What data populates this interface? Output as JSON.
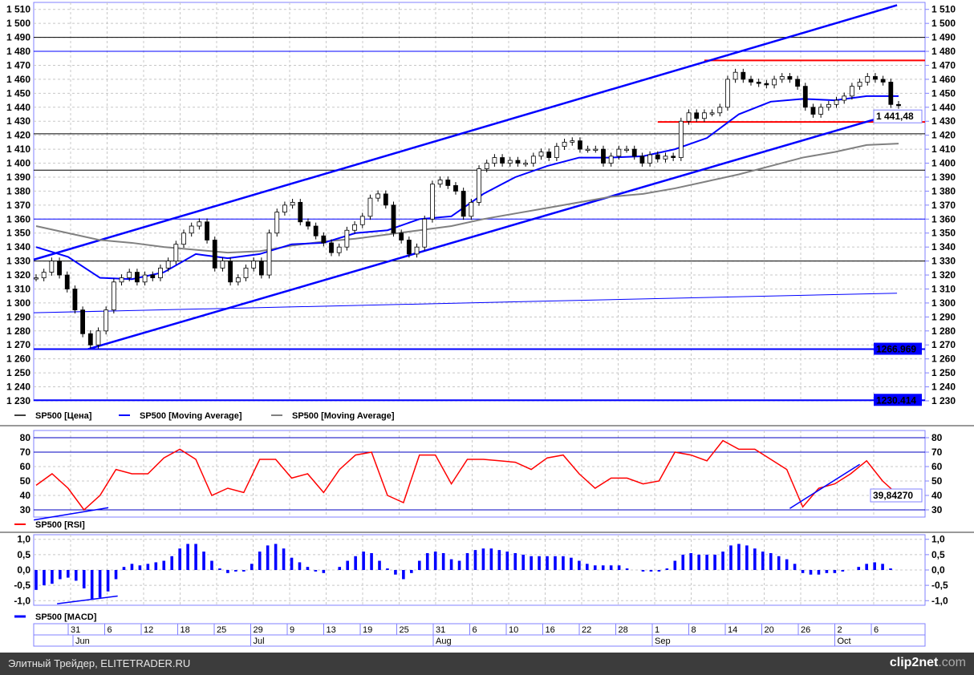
{
  "colors": {
    "price_ma": "#0000ff",
    "long_ma": "#808080",
    "rsi": "#ff0000",
    "macd": "#0000ff",
    "support": "#ff0000",
    "grid": "#c8c8c8",
    "frame": "#8080ff",
    "footer": "#3c3c3c"
  },
  "legend": {
    "price": [
      {
        "label": "SP500 [Цена]",
        "color": "#404040"
      },
      {
        "label": "SP500 [Moving Average]",
        "color": "#0000ff"
      },
      {
        "label": "SP500 [Moving Average]",
        "color": "#808080"
      }
    ],
    "rsi": {
      "label": "SP500 [RSI]",
      "color": "#ff0000"
    },
    "macd": {
      "label": "SP500 [MACD]",
      "color": "#0000ff"
    }
  },
  "footer": {
    "source": "Элитный Трейдер, ELITETRADER.RU",
    "logo_main": "clip2net",
    "logo_suffix": ".com"
  },
  "chart_data": [
    {
      "type": "candlestick",
      "panel": "price",
      "ylim": [
        1230,
        1515
      ],
      "y_ticks": [
        "1 230",
        "1 240",
        "1 250",
        "1 260",
        "1 270",
        "1 280",
        "1 290",
        "1 300",
        "1 310",
        "1 320",
        "1 330",
        "1 340",
        "1 350",
        "1 360",
        "1 370",
        "1 380",
        "1 390",
        "1 400",
        "1 410",
        "1 420",
        "1 430",
        "1 440",
        "1 450",
        "1 460",
        "1 470",
        "1 480",
        "1 490",
        "1 500",
        "1 510"
      ],
      "y_tick_values": [
        1230,
        1240,
        1250,
        1260,
        1270,
        1280,
        1290,
        1300,
        1310,
        1320,
        1330,
        1340,
        1350,
        1360,
        1370,
        1380,
        1390,
        1400,
        1410,
        1420,
        1430,
        1440,
        1450,
        1460,
        1470,
        1480,
        1490,
        1500,
        1510
      ],
      "last_price_label": "1 441,48",
      "close": [
        1318,
        1322,
        1330,
        1320,
        1310,
        1295,
        1278,
        1270,
        1280,
        1295,
        1315,
        1318,
        1322,
        1315,
        1320,
        1318,
        1325,
        1330,
        1342,
        1350,
        1355,
        1358,
        1345,
        1325,
        1330,
        1315,
        1318,
        1325,
        1330,
        1320,
        1350,
        1365,
        1370,
        1372,
        1358,
        1355,
        1348,
        1343,
        1336,
        1340,
        1352,
        1356,
        1362,
        1375,
        1378,
        1370,
        1350,
        1345,
        1335,
        1340,
        1360,
        1385,
        1388,
        1384,
        1380,
        1362,
        1372,
        1396,
        1400,
        1404,
        1400,
        1402,
        1400,
        1400,
        1405,
        1408,
        1404,
        1412,
        1415,
        1416,
        1410,
        1410,
        1410,
        1400,
        1405,
        1410,
        1410,
        1405,
        1400,
        1406,
        1403,
        1405,
        1404,
        1430,
        1436,
        1432,
        1436,
        1436,
        1440,
        1460,
        1465,
        1460,
        1458,
        1457,
        1456,
        1460,
        1462,
        1460,
        1455,
        1440,
        1435,
        1440,
        1442,
        1445,
        1448,
        1455,
        1458,
        1462,
        1460,
        1458,
        1442,
        1441.48
      ],
      "moving_average_short": [
        1340,
        1333,
        1318,
        1317,
        1322,
        1335,
        1332,
        1335,
        1342,
        1343,
        1350,
        1352,
        1360,
        1362,
        1378,
        1390,
        1398,
        1404,
        1404,
        1405,
        1410,
        1418,
        1435,
        1444,
        1446,
        1445,
        1448,
        1448
      ],
      "moving_average_long": [
        1355,
        1350,
        1345,
        1343,
        1340,
        1338,
        1336,
        1337,
        1341,
        1344,
        1346,
        1349,
        1352,
        1355,
        1360,
        1364,
        1368,
        1372,
        1376,
        1378,
        1382,
        1387,
        1392,
        1398,
        1404,
        1408,
        1413,
        1414
      ],
      "horizontal_levels": [
        {
          "value": 1490,
          "color": "#000000"
        },
        {
          "value": 1480,
          "color": "#0000ff"
        },
        {
          "value": 1421,
          "color": "#000000"
        },
        {
          "value": 1395,
          "color": "#000000"
        },
        {
          "value": 1360,
          "color": "#0000ff"
        },
        {
          "value": 1330,
          "color": "#000000"
        },
        {
          "value": 1266.969,
          "color": "#0000ff",
          "label": "1266.969",
          "thick": true
        },
        {
          "value": 1230.414,
          "color": "#0000ff",
          "label": "1230.414",
          "thick": true
        }
      ],
      "support_resistance": [
        {
          "value": 1473.5,
          "from_bar": 86
        },
        {
          "value": 1429.5,
          "from_bar": 80
        }
      ],
      "trendlines": [
        {
          "from": [
            -0.3,
            1331
          ],
          "to": [
            110.8,
            1513
          ]
        },
        {
          "from": [
            6.7,
            1267
          ],
          "to": [
            110.8,
            1436
          ]
        },
        {
          "from": [
            -0.3,
            1293
          ],
          "to": [
            110.8,
            1307
          ],
          "thin": true
        }
      ]
    },
    {
      "type": "line",
      "panel": "rsi",
      "ylim": [
        25,
        85
      ],
      "y_ticks": [
        "30",
        "40",
        "50",
        "60",
        "70",
        "80"
      ],
      "y_tick_values": [
        30,
        40,
        50,
        60,
        70,
        80
      ],
      "levels": [
        80,
        70,
        30
      ],
      "last_value_label": "39,84270",
      "values": [
        47,
        55,
        45,
        30,
        40,
        58,
        55,
        55,
        66,
        72,
        65,
        40,
        45,
        42,
        65,
        65,
        52,
        55,
        42,
        58,
        68,
        70,
        40,
        35,
        68,
        68,
        48,
        65,
        65,
        64,
        63,
        58,
        66,
        68,
        55,
        45,
        52,
        52,
        48,
        50,
        70,
        68,
        64,
        78,
        72,
        72,
        65,
        58,
        32,
        45,
        48,
        55,
        64,
        50,
        40
      ],
      "trendlines": [
        {
          "from": [
            -0.3,
            23
          ],
          "to": [
            9.3,
            31.5
          ]
        },
        {
          "from": [
            97,
            31
          ],
          "to": [
            106,
            61.5
          ]
        }
      ]
    },
    {
      "type": "bar",
      "panel": "macd",
      "ylim": [
        -1.15,
        1.15
      ],
      "y_ticks": [
        "-1,0",
        "-0,5",
        "0,0",
        "0,5",
        "1,0"
      ],
      "y_tick_values": [
        -1,
        -0.5,
        0,
        0.5,
        1
      ],
      "values": [
        -0.65,
        -0.5,
        -0.45,
        -0.3,
        -0.25,
        -0.35,
        -0.6,
        -0.95,
        -0.9,
        -0.7,
        -0.3,
        0.1,
        0.2,
        0.15,
        0.2,
        0.25,
        0.3,
        0.45,
        0.7,
        0.85,
        0.85,
        0.6,
        0.3,
        0.05,
        -0.1,
        -0.05,
        -0.05,
        0.2,
        0.6,
        0.8,
        0.85,
        0.7,
        0.4,
        0.25,
        0.1,
        -0.05,
        -0.1,
        0,
        0.1,
        0.3,
        0.45,
        0.6,
        0.55,
        0.3,
        0.05,
        -0.15,
        -0.3,
        -0.1,
        0.3,
        0.55,
        0.6,
        0.55,
        0.35,
        0.3,
        0.55,
        0.65,
        0.7,
        0.7,
        0.65,
        0.6,
        0.55,
        0.5,
        0.45,
        0.45,
        0.45,
        0.45,
        0.45,
        0.4,
        0.3,
        0.2,
        0.15,
        0.15,
        0.15,
        0.15,
        0.05,
        0,
        -0.05,
        -0.05,
        -0.05,
        0.05,
        0.3,
        0.5,
        0.55,
        0.5,
        0.5,
        0.5,
        0.6,
        0.8,
        0.85,
        0.8,
        0.7,
        0.6,
        0.55,
        0.45,
        0.35,
        0.2,
        -0.1,
        -0.15,
        -0.15,
        -0.1,
        -0.1,
        -0.05,
        0,
        0.1,
        0.2,
        0.25,
        0.2,
        0.05,
        0
      ],
      "trendlines": [
        {
          "from": [
            2.7,
            -1.1
          ],
          "to": [
            10.5,
            -0.85
          ]
        }
      ]
    }
  ],
  "x_axis": {
    "day_ticks": [
      "31",
      "6",
      "12",
      "18",
      "25",
      "29",
      "9",
      "13",
      "19",
      "25",
      "31",
      "6",
      "10",
      "16",
      "22",
      "28",
      "1",
      "8",
      "14",
      "20",
      "26",
      "2",
      "6"
    ],
    "months": [
      {
        "label": "Jun",
        "at_tick": 0
      },
      {
        "label": "Jul",
        "at_tick": 5
      },
      {
        "label": "Aug",
        "at_tick": 10
      },
      {
        "label": "Sep",
        "at_tick": 16
      },
      {
        "label": "Oct",
        "at_tick": 21
      }
    ]
  }
}
